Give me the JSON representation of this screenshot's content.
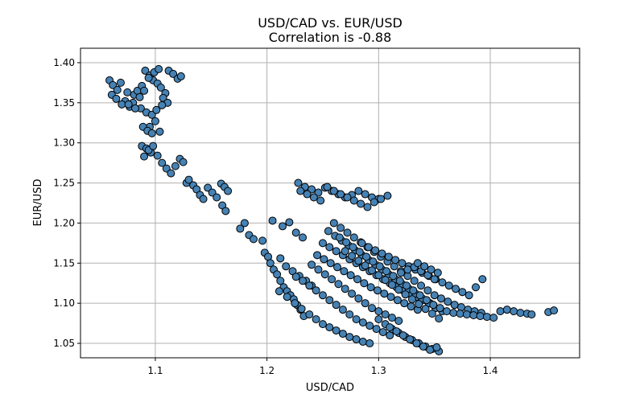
{
  "chart_data": {
    "type": "scatter",
    "title": "USD/CAD vs. EUR/USD",
    "subtitle": "Correlation is -0.88",
    "xlabel": "USD/CAD",
    "ylabel": "EUR/USD",
    "xlim": [
      1.033,
      1.48
    ],
    "ylim": [
      1.032,
      1.418
    ],
    "xticks": [
      "1.1",
      "1.2",
      "1.3",
      "1.4"
    ],
    "yticks": [
      "1.05",
      "1.10",
      "1.15",
      "1.20",
      "1.25",
      "1.30",
      "1.35",
      "1.40"
    ],
    "grid": true,
    "marker_color": "#4682b4",
    "marker_edge_color": "#000000",
    "x": [
      1.059,
      1.062,
      1.066,
      1.069,
      1.073,
      1.077,
      1.081,
      1.084,
      1.088,
      1.091,
      1.095,
      1.098,
      1.102,
      1.105,
      1.109,
      1.112,
      1.116,
      1.12,
      1.123,
      1.061,
      1.065,
      1.07,
      1.075,
      1.08,
      1.086,
      1.09,
      1.094,
      1.099,
      1.103,
      1.107,
      1.111,
      1.087,
      1.092,
      1.097,
      1.101,
      1.106,
      1.095,
      1.1,
      1.104,
      1.076,
      1.082,
      1.089,
      1.093,
      1.097,
      1.088,
      1.092,
      1.096,
      1.09,
      1.094,
      1.098,
      1.102,
      1.106,
      1.11,
      1.114,
      1.118,
      1.122,
      1.125,
      1.128,
      1.13,
      1.134,
      1.137,
      1.14,
      1.143,
      1.147,
      1.151,
      1.155,
      1.159,
      1.162,
      1.165,
      1.16,
      1.163,
      1.176,
      1.18,
      1.184,
      1.188,
      1.196,
      1.198,
      1.201,
      1.203,
      1.206,
      1.209,
      1.212,
      1.215,
      1.218,
      1.221,
      1.224,
      1.227,
      1.23,
      1.233,
      1.205,
      1.214,
      1.22,
      1.226,
      1.232,
      1.212,
      1.217,
      1.223,
      1.229,
      1.235,
      1.24,
      1.211,
      1.218,
      1.225,
      1.231,
      1.238,
      1.244,
      1.25,
      1.256,
      1.262,
      1.268,
      1.274,
      1.28,
      1.286,
      1.292,
      1.226,
      1.232,
      1.238,
      1.244,
      1.25,
      1.256,
      1.262,
      1.268,
      1.274,
      1.28,
      1.286,
      1.292,
      1.298,
      1.304,
      1.31,
      1.24,
      1.246,
      1.252,
      1.258,
      1.264,
      1.27,
      1.276,
      1.282,
      1.288,
      1.294,
      1.3,
      1.306,
      1.312,
      1.318,
      1.245,
      1.251,
      1.257,
      1.263,
      1.269,
      1.275,
      1.281,
      1.287,
      1.293,
      1.299,
      1.305,
      1.311,
      1.317,
      1.323,
      1.329,
      1.335,
      1.25,
      1.256,
      1.262,
      1.268,
      1.274,
      1.28,
      1.286,
      1.292,
      1.298,
      1.304,
      1.31,
      1.316,
      1.322,
      1.328,
      1.334,
      1.34,
      1.346,
      1.255,
      1.261,
      1.267,
      1.273,
      1.279,
      1.285,
      1.291,
      1.297,
      1.303,
      1.309,
      1.315,
      1.321,
      1.327,
      1.333,
      1.339,
      1.345,
      1.351,
      1.357,
      1.26,
      1.266,
      1.272,
      1.278,
      1.284,
      1.29,
      1.296,
      1.302,
      1.308,
      1.314,
      1.32,
      1.326,
      1.332,
      1.338,
      1.344,
      1.35,
      1.356,
      1.362,
      1.368,
      1.374,
      1.38,
      1.386,
      1.392,
      1.265,
      1.271,
      1.277,
      1.283,
      1.289,
      1.295,
      1.301,
      1.307,
      1.313,
      1.319,
      1.325,
      1.331,
      1.337,
      1.343,
      1.349,
      1.355,
      1.361,
      1.367,
      1.373,
      1.379,
      1.385,
      1.391,
      1.397,
      1.403,
      1.409,
      1.415,
      1.421,
      1.427,
      1.433,
      1.437,
      1.452,
      1.457,
      1.27,
      1.276,
      1.282,
      1.288,
      1.294,
      1.3,
      1.306,
      1.312,
      1.318,
      1.324,
      1.33,
      1.336,
      1.342,
      1.348,
      1.354,
      1.3,
      1.306,
      1.312,
      1.318,
      1.324,
      1.33,
      1.336,
      1.342,
      1.348,
      1.354,
      1.31,
      1.316,
      1.322,
      1.328,
      1.334,
      1.34,
      1.346,
      1.352,
      1.228,
      1.234,
      1.24,
      1.246,
      1.252,
      1.258,
      1.264,
      1.27,
      1.276,
      1.282,
      1.288,
      1.294,
      1.3,
      1.23,
      1.236,
      1.242,
      1.248,
      1.254,
      1.26,
      1.266,
      1.272,
      1.278,
      1.284,
      1.29,
      1.296,
      1.302,
      1.308,
      1.285,
      1.291,
      1.297,
      1.303,
      1.309,
      1.315,
      1.321,
      1.327,
      1.333,
      1.339,
      1.345,
      1.351,
      1.357,
      1.363,
      1.369,
      1.375,
      1.381,
      1.387,
      1.393,
      1.32,
      1.326,
      1.332,
      1.338,
      1.344,
      1.35,
      1.335,
      1.341,
      1.347,
      1.353
    ],
    "y": [
      1.378,
      1.372,
      1.366,
      1.375,
      1.352,
      1.345,
      1.36,
      1.365,
      1.371,
      1.39,
      1.384,
      1.378,
      1.374,
      1.369,
      1.362,
      1.39,
      1.386,
      1.38,
      1.383,
      1.36,
      1.355,
      1.348,
      1.363,
      1.35,
      1.357,
      1.365,
      1.381,
      1.388,
      1.392,
      1.356,
      1.35,
      1.343,
      1.338,
      1.335,
      1.341,
      1.347,
      1.32,
      1.327,
      1.314,
      1.348,
      1.343,
      1.32,
      1.315,
      1.312,
      1.296,
      1.293,
      1.288,
      1.283,
      1.291,
      1.296,
      1.284,
      1.275,
      1.268,
      1.262,
      1.271,
      1.28,
      1.276,
      1.25,
      1.254,
      1.247,
      1.242,
      1.235,
      1.23,
      1.244,
      1.238,
      1.232,
      1.249,
      1.245,
      1.24,
      1.222,
      1.215,
      1.193,
      1.2,
      1.185,
      1.18,
      1.178,
      1.163,
      1.158,
      1.15,
      1.142,
      1.136,
      1.128,
      1.12,
      1.115,
      1.11,
      1.105,
      1.098,
      1.092,
      1.084,
      1.203,
      1.196,
      1.201,
      1.188,
      1.182,
      1.156,
      1.146,
      1.14,
      1.134,
      1.128,
      1.122,
      1.115,
      1.108,
      1.1,
      1.093,
      1.086,
      1.08,
      1.074,
      1.07,
      1.066,
      1.062,
      1.058,
      1.055,
      1.052,
      1.05,
      1.133,
      1.128,
      1.122,
      1.116,
      1.11,
      1.104,
      1.098,
      1.092,
      1.086,
      1.08,
      1.076,
      1.072,
      1.068,
      1.064,
      1.06,
      1.148,
      1.142,
      1.136,
      1.13,
      1.124,
      1.118,
      1.112,
      1.106,
      1.1,
      1.094,
      1.09,
      1.086,
      1.082,
      1.078,
      1.16,
      1.155,
      1.15,
      1.145,
      1.14,
      1.135,
      1.13,
      1.125,
      1.12,
      1.116,
      1.112,
      1.108,
      1.104,
      1.1,
      1.096,
      1.092,
      1.175,
      1.17,
      1.165,
      1.16,
      1.155,
      1.15,
      1.145,
      1.14,
      1.135,
      1.13,
      1.125,
      1.12,
      1.116,
      1.112,
      1.108,
      1.104,
      1.1,
      1.19,
      1.184,
      1.178,
      1.172,
      1.166,
      1.16,
      1.154,
      1.148,
      1.142,
      1.136,
      1.13,
      1.124,
      1.118,
      1.112,
      1.106,
      1.1,
      1.094,
      1.09,
      1.2,
      1.194,
      1.188,
      1.182,
      1.176,
      1.17,
      1.164,
      1.158,
      1.152,
      1.146,
      1.14,
      1.134,
      1.128,
      1.122,
      1.116,
      1.11,
      1.106,
      1.102,
      1.098,
      1.095,
      1.092,
      1.09,
      1.088,
      1.182,
      1.176,
      1.17,
      1.164,
      1.158,
      1.152,
      1.146,
      1.14,
      1.134,
      1.128,
      1.122,
      1.116,
      1.11,
      1.104,
      1.098,
      1.094,
      1.09,
      1.088,
      1.087,
      1.086,
      1.085,
      1.084,
      1.083,
      1.082,
      1.09,
      1.092,
      1.09,
      1.088,
      1.087,
      1.086,
      1.089,
      1.091,
      1.165,
      1.159,
      1.153,
      1.147,
      1.141,
      1.135,
      1.129,
      1.123,
      1.117,
      1.111,
      1.105,
      1.099,
      1.093,
      1.087,
      1.081,
      1.08,
      1.074,
      1.068,
      1.063,
      1.058,
      1.054,
      1.05,
      1.046,
      1.043,
      1.04,
      1.07,
      1.065,
      1.06,
      1.055,
      1.05,
      1.046,
      1.042,
      1.045,
      1.25,
      1.245,
      1.242,
      1.238,
      1.244,
      1.24,
      1.236,
      1.232,
      1.235,
      1.24,
      1.236,
      1.232,
      1.23,
      1.24,
      1.236,
      1.232,
      1.228,
      1.245,
      1.24,
      1.236,
      1.232,
      1.228,
      1.224,
      1.22,
      1.226,
      1.23,
      1.234,
      1.175,
      1.17,
      1.166,
      1.162,
      1.158,
      1.154,
      1.15,
      1.146,
      1.142,
      1.138,
      1.134,
      1.13,
      1.126,
      1.122,
      1.118,
      1.114,
      1.11,
      1.12,
      1.13,
      1.138,
      1.142,
      1.145,
      1.14,
      1.135,
      1.13,
      1.15,
      1.146,
      1.142,
      1.138
    ]
  }
}
